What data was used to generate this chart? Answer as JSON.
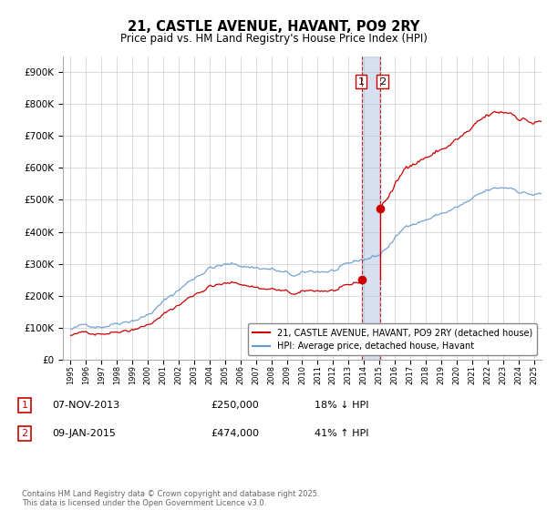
{
  "title": "21, CASTLE AVENUE, HAVANT, PO9 2RY",
  "subtitle": "Price paid vs. HM Land Registry's House Price Index (HPI)",
  "legend_label_red": "21, CASTLE AVENUE, HAVANT, PO9 2RY (detached house)",
  "legend_label_blue": "HPI: Average price, detached house, Havant",
  "transaction1_date": "07-NOV-2013",
  "transaction1_price": "£250,000",
  "transaction1_hpi": "18% ↓ HPI",
  "transaction2_date": "09-JAN-2015",
  "transaction2_price": "£474,000",
  "transaction2_hpi": "41% ↑ HPI",
  "footer": "Contains HM Land Registry data © Crown copyright and database right 2025.\nThis data is licensed under the Open Government Licence v3.0.",
  "red_color": "#cc0000",
  "blue_color": "#6699cc",
  "vline_color": "#cc0000",
  "t1": 2013.854,
  "t2": 2015.036,
  "shading_color": "#aabbdd",
  "ylim_min": 0,
  "ylim_max": 950000,
  "xlim_min": 1994.5,
  "xlim_max": 2025.5,
  "background_color": "#ffffff",
  "grid_color": "#cccccc",
  "sale1_price": 250000,
  "sale2_price": 474000
}
